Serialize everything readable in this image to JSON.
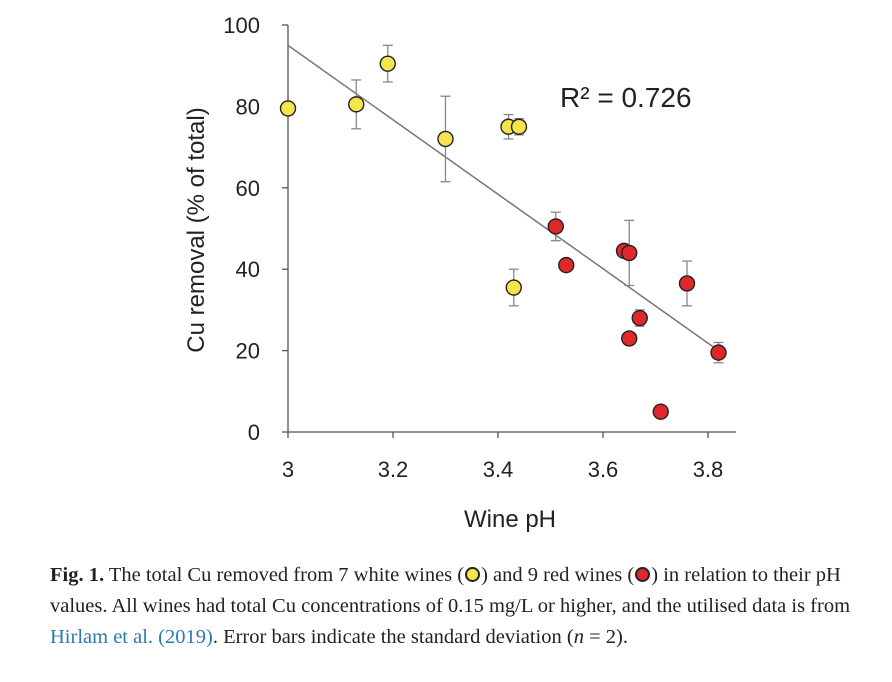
{
  "chart_data": {
    "type": "scatter",
    "xlabel": "Wine pH",
    "ylabel": "Cu removal (% of total)",
    "xlim": [
      3,
      3.85
    ],
    "ylim": [
      0,
      100
    ],
    "x_ticks": [
      "3",
      "3.2",
      "3.4",
      "3.6",
      "3.8"
    ],
    "y_ticks": [
      "0",
      "20",
      "40",
      "60",
      "80",
      "100"
    ],
    "annotation": "R² = 0.726",
    "trendline": {
      "x": [
        3,
        3.82
      ],
      "y": [
        95,
        20
      ]
    },
    "series": [
      {
        "color": "#f5e44a",
        "points": [
          {
            "x": 3.0,
            "y": 79.5,
            "err": 0
          },
          {
            "x": 3.13,
            "y": 80.5,
            "err": 6
          },
          {
            "x": 3.19,
            "y": 90.5,
            "err": 4.5
          },
          {
            "x": 3.3,
            "y": 72,
            "err": 10.5
          },
          {
            "x": 3.42,
            "y": 75,
            "err": 3
          },
          {
            "x": 3.44,
            "y": 75,
            "err": 2
          },
          {
            "x": 3.43,
            "y": 35.5,
            "err": 4.5
          }
        ]
      },
      {
        "color": "#e0282a",
        "points": [
          {
            "x": 3.51,
            "y": 50.5,
            "err": 3.5
          },
          {
            "x": 3.53,
            "y": 41,
            "err": 0
          },
          {
            "x": 3.64,
            "y": 44.5,
            "err": 0
          },
          {
            "x": 3.65,
            "y": 44,
            "err": 8
          },
          {
            "x": 3.65,
            "y": 23,
            "err": 0
          },
          {
            "x": 3.67,
            "y": 28,
            "err": 2
          },
          {
            "x": 3.71,
            "y": 5,
            "err": 0
          },
          {
            "x": 3.76,
            "y": 36.5,
            "err": 5.5
          },
          {
            "x": 3.82,
            "y": 19.5,
            "err": 2.5
          }
        ]
      }
    ]
  },
  "caption": {
    "fig_label": "Fig. 1.",
    "text_1": " The total Cu removed from 7 white wines (",
    "text_2": ") and 9 red wines (",
    "text_3": ") in relation to their pH values. All wines had total Cu concentrations of 0.15 mg/L or higher, and the utilised data is from ",
    "link": "Hirlam et al. (2019)",
    "text_4": ". Error bars indicate the standard deviation (",
    "n_var": "n",
    "text_5": " = 2).",
    "white_color": "#f5e44a",
    "red_color": "#e0282a"
  }
}
